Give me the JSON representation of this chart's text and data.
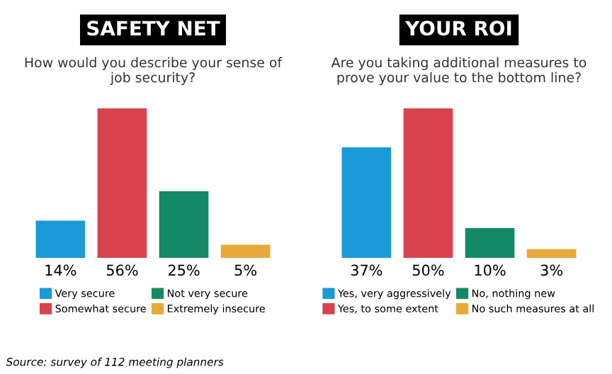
{
  "chart_data": [
    {
      "type": "bar",
      "title": "SAFETY NET",
      "subtitle": "How would you describe your sense of job security?",
      "categories": [
        null
      ],
      "legend": "bottom",
      "grid": false,
      "series": [
        {
          "name": "Very secure",
          "color": "#1a9ad6",
          "values": [
            14
          ],
          "value_labels": [
            "14%"
          ]
        },
        {
          "name": "Somewhat secure",
          "color": "#d9434f",
          "values": [
            56
          ],
          "value_labels": [
            "56%"
          ]
        },
        {
          "name": "Not very secure",
          "color": "#138a65",
          "values": [
            25
          ],
          "value_labels": [
            "25%"
          ]
        },
        {
          "name": "Extremely insecure",
          "color": "#e8a93a",
          "values": [
            5
          ],
          "value_labels": [
            "5%"
          ]
        }
      ],
      "annotations": [
        "Source: survey of 112 meeting planners"
      ]
    },
    {
      "type": "bar",
      "title": "YOUR ROI",
      "subtitle": "Are you taking additional measures to prove your value to the bottom line?",
      "categories": [
        null
      ],
      "legend": "bottom",
      "grid": false,
      "series": [
        {
          "name": "Yes, very aggressively",
          "color": "#1a9ad6",
          "values": [
            37
          ],
          "value_labels": [
            "37%"
          ]
        },
        {
          "name": "Yes, to some extent",
          "color": "#d9434f",
          "values": [
            50
          ],
          "value_labels": [
            "50%"
          ]
        },
        {
          "name": "No, nothing new",
          "color": "#138a65",
          "values": [
            10
          ],
          "value_labels": [
            "10%"
          ]
        },
        {
          "name": "No such measures at all",
          "color": "#e8a93a",
          "values": [
            3
          ],
          "value_labels": [
            "3%"
          ]
        }
      ]
    }
  ]
}
